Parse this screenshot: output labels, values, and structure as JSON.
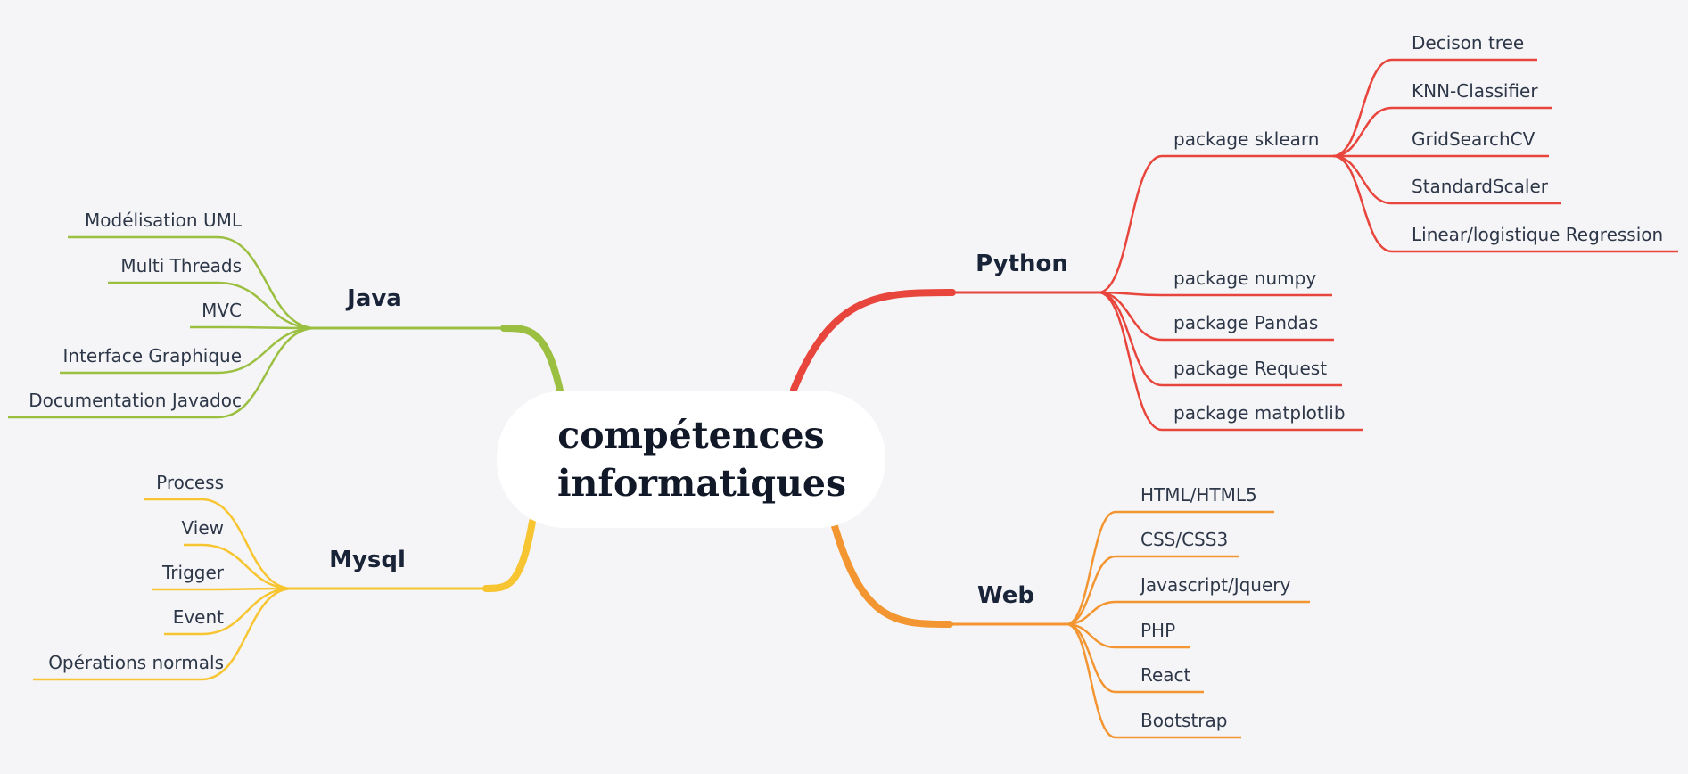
{
  "center": {
    "title": "compétences informatiques"
  },
  "branches": [
    {
      "name": "Java",
      "color": "#9bbf40",
      "side": "left",
      "items": [
        "Modélisation UML",
        "Multi Threads",
        "MVC",
        "Interface Graphique",
        "Documentation Javadoc"
      ]
    },
    {
      "name": "Mysql",
      "color": "#f7c531",
      "side": "left",
      "items": [
        "Process",
        "View",
        "Trigger",
        "Event",
        "Opérations normals"
      ]
    },
    {
      "name": "Python",
      "color": "#e8453c",
      "side": "right",
      "items": [
        {
          "label": "package sklearn",
          "children": [
            "Decison tree",
            "KNN-Classifier",
            "GridSearchCV",
            "StandardScaler",
            "Linear/logistique Regression"
          ]
        },
        "package numpy",
        "package Pandas",
        "package Request",
        "package matplotlib"
      ]
    },
    {
      "name": "Web",
      "color": "#f39530",
      "side": "right",
      "items": [
        "HTML/HTML5",
        "CSS/CSS3",
        "Javascript/Jquery",
        "PHP",
        "React",
        "Bootstrap"
      ]
    }
  ]
}
